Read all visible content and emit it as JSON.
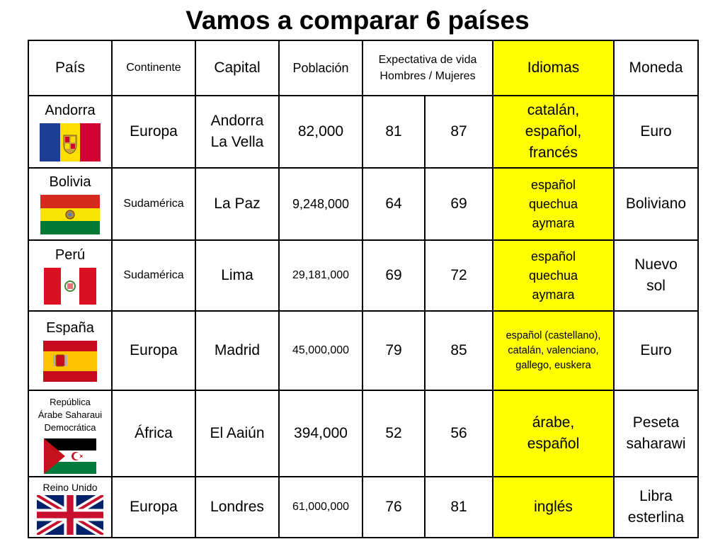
{
  "title": "Vamos a comparar 6 países",
  "headers": {
    "pais": "País",
    "continente": "Continente",
    "capital": "Capital",
    "poblacion": "Población",
    "expectativa_line1": "Expectativa de vida",
    "expectativa_line2": "Hombres / Mujeres",
    "idiomas": "Idiomas",
    "moneda": "Moneda"
  },
  "colors": {
    "idiomas_highlight": "#ffff00",
    "border": "#000000"
  },
  "rows": [
    {
      "pais": "Andorra",
      "flag": "andorra-flag-icon",
      "continente": "Europa",
      "capital_1": "Andorra",
      "capital_2": "La Vella",
      "poblacion": "82,000",
      "hombres": "81",
      "mujeres": "87",
      "idiomas": [
        "catalán,",
        "español,",
        "francés"
      ],
      "moneda_1": "Euro",
      "moneda_2": ""
    },
    {
      "pais": "Bolivia",
      "flag": "bolivia-flag-icon",
      "continente": "Sudamérica",
      "capital_1": "La Paz",
      "capital_2": "",
      "poblacion": "9,248,000",
      "hombres": "64",
      "mujeres": "69",
      "idiomas": [
        "español",
        "quechua",
        "aymara"
      ],
      "moneda_1": "Boliviano",
      "moneda_2": ""
    },
    {
      "pais": "Perú",
      "flag": "peru-flag-icon",
      "continente": "Sudamérica",
      "capital_1": "Lima",
      "capital_2": "",
      "poblacion": "29,181,000",
      "hombres": "69",
      "mujeres": "72",
      "idiomas": [
        "español",
        "quechua",
        "aymara"
      ],
      "moneda_1": "Nuevo",
      "moneda_2": "sol"
    },
    {
      "pais": "España",
      "flag": "spain-flag-icon",
      "continente": "Europa",
      "capital_1": "Madrid",
      "capital_2": "",
      "poblacion": "45,000,000",
      "hombres": "79",
      "mujeres": "85",
      "idiomas": [
        "español (castellano),",
        "catalán, valenciano,",
        "gallego, euskera"
      ],
      "moneda_1": "Euro",
      "moneda_2": ""
    },
    {
      "pais_1": "República",
      "pais_2": "Árabe Saharaui",
      "pais_3": "Democrática",
      "flag": "sahrawi-flag-icon",
      "continente": "África",
      "capital_1": "El Aaiún",
      "capital_2": "",
      "poblacion": "394,000",
      "hombres": "52",
      "mujeres": "56",
      "idiomas": [
        "árabe,",
        "español"
      ],
      "moneda_1": "Peseta",
      "moneda_2": "saharawi"
    },
    {
      "pais": "Reino Unido",
      "flag": "uk-flag-icon",
      "continente": "Europa",
      "capital_1": "Londres",
      "capital_2": "",
      "poblacion": "61,000,000",
      "hombres": "76",
      "mujeres": "81",
      "idiomas": [
        "inglés"
      ],
      "moneda_1": "Libra",
      "moneda_2": "esterlina"
    }
  ]
}
